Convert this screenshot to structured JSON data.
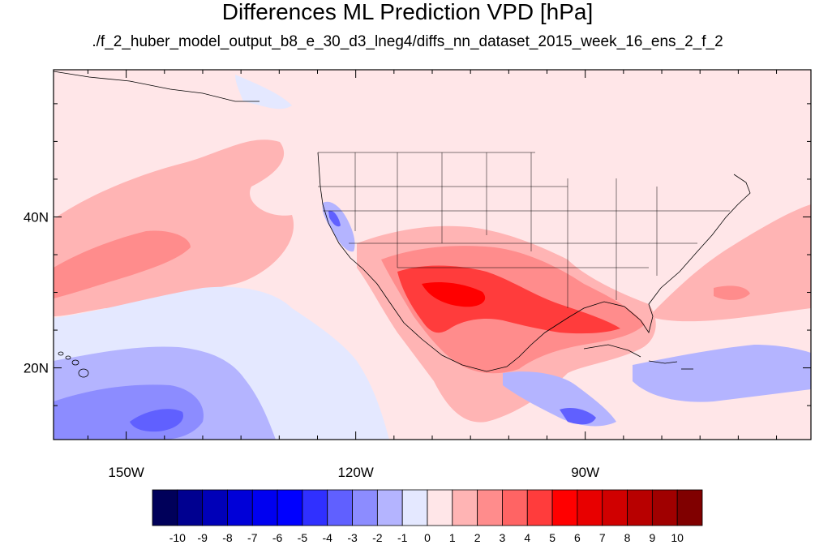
{
  "title": "Differences ML Prediction VPD [hPa]",
  "subtitle": "./f_2_huber_model_output_b8_e_30_d3_lneg4/diffs_nn_dataset_2015_week_16_ens_2_f_2",
  "axes": {
    "lat_ticks": [
      {
        "label": "40N",
        "value": 40
      },
      {
        "label": "20N",
        "value": 20
      }
    ],
    "lon_ticks": [
      {
        "label": "150W",
        "value": -150
      },
      {
        "label": "120W",
        "value": -120
      },
      {
        "label": "90W",
        "value": -90
      }
    ],
    "lon_range": [
      -159.5,
      -60.5
    ],
    "lat_range": [
      10.5,
      59.5
    ]
  },
  "colorbar": {
    "labels": [
      "-10",
      "-9",
      "-8",
      "-7",
      "-6",
      "-5",
      "-4",
      "-3",
      "-2",
      "-1",
      "0",
      "1",
      "2",
      "3",
      "4",
      "5",
      "6",
      "7",
      "8",
      "9",
      "10"
    ],
    "colors": [
      "#00005a",
      "#000090",
      "#0000b8",
      "#0000d8",
      "#0000f0",
      "#0000ff",
      "#3030ff",
      "#6060ff",
      "#8c8cff",
      "#b4b4ff",
      "#e4e8ff",
      "#ffe6e8",
      "#ffb4b4",
      "#ff8c8c",
      "#ff6464",
      "#ff3c3c",
      "#ff0000",
      "#e80000",
      "#d00000",
      "#b80000",
      "#a00000",
      "#800000"
    ]
  },
  "colors": {
    "background_field": "#ffe6e8",
    "warm_light": "#ffb4b4",
    "warm_mid": "#ff8c8c",
    "warm_strong": "#ff3c3c",
    "cool_light": "#e4e8ff",
    "cool_mid": "#b4b4ff",
    "cool_strong": "#6060ff"
  }
}
